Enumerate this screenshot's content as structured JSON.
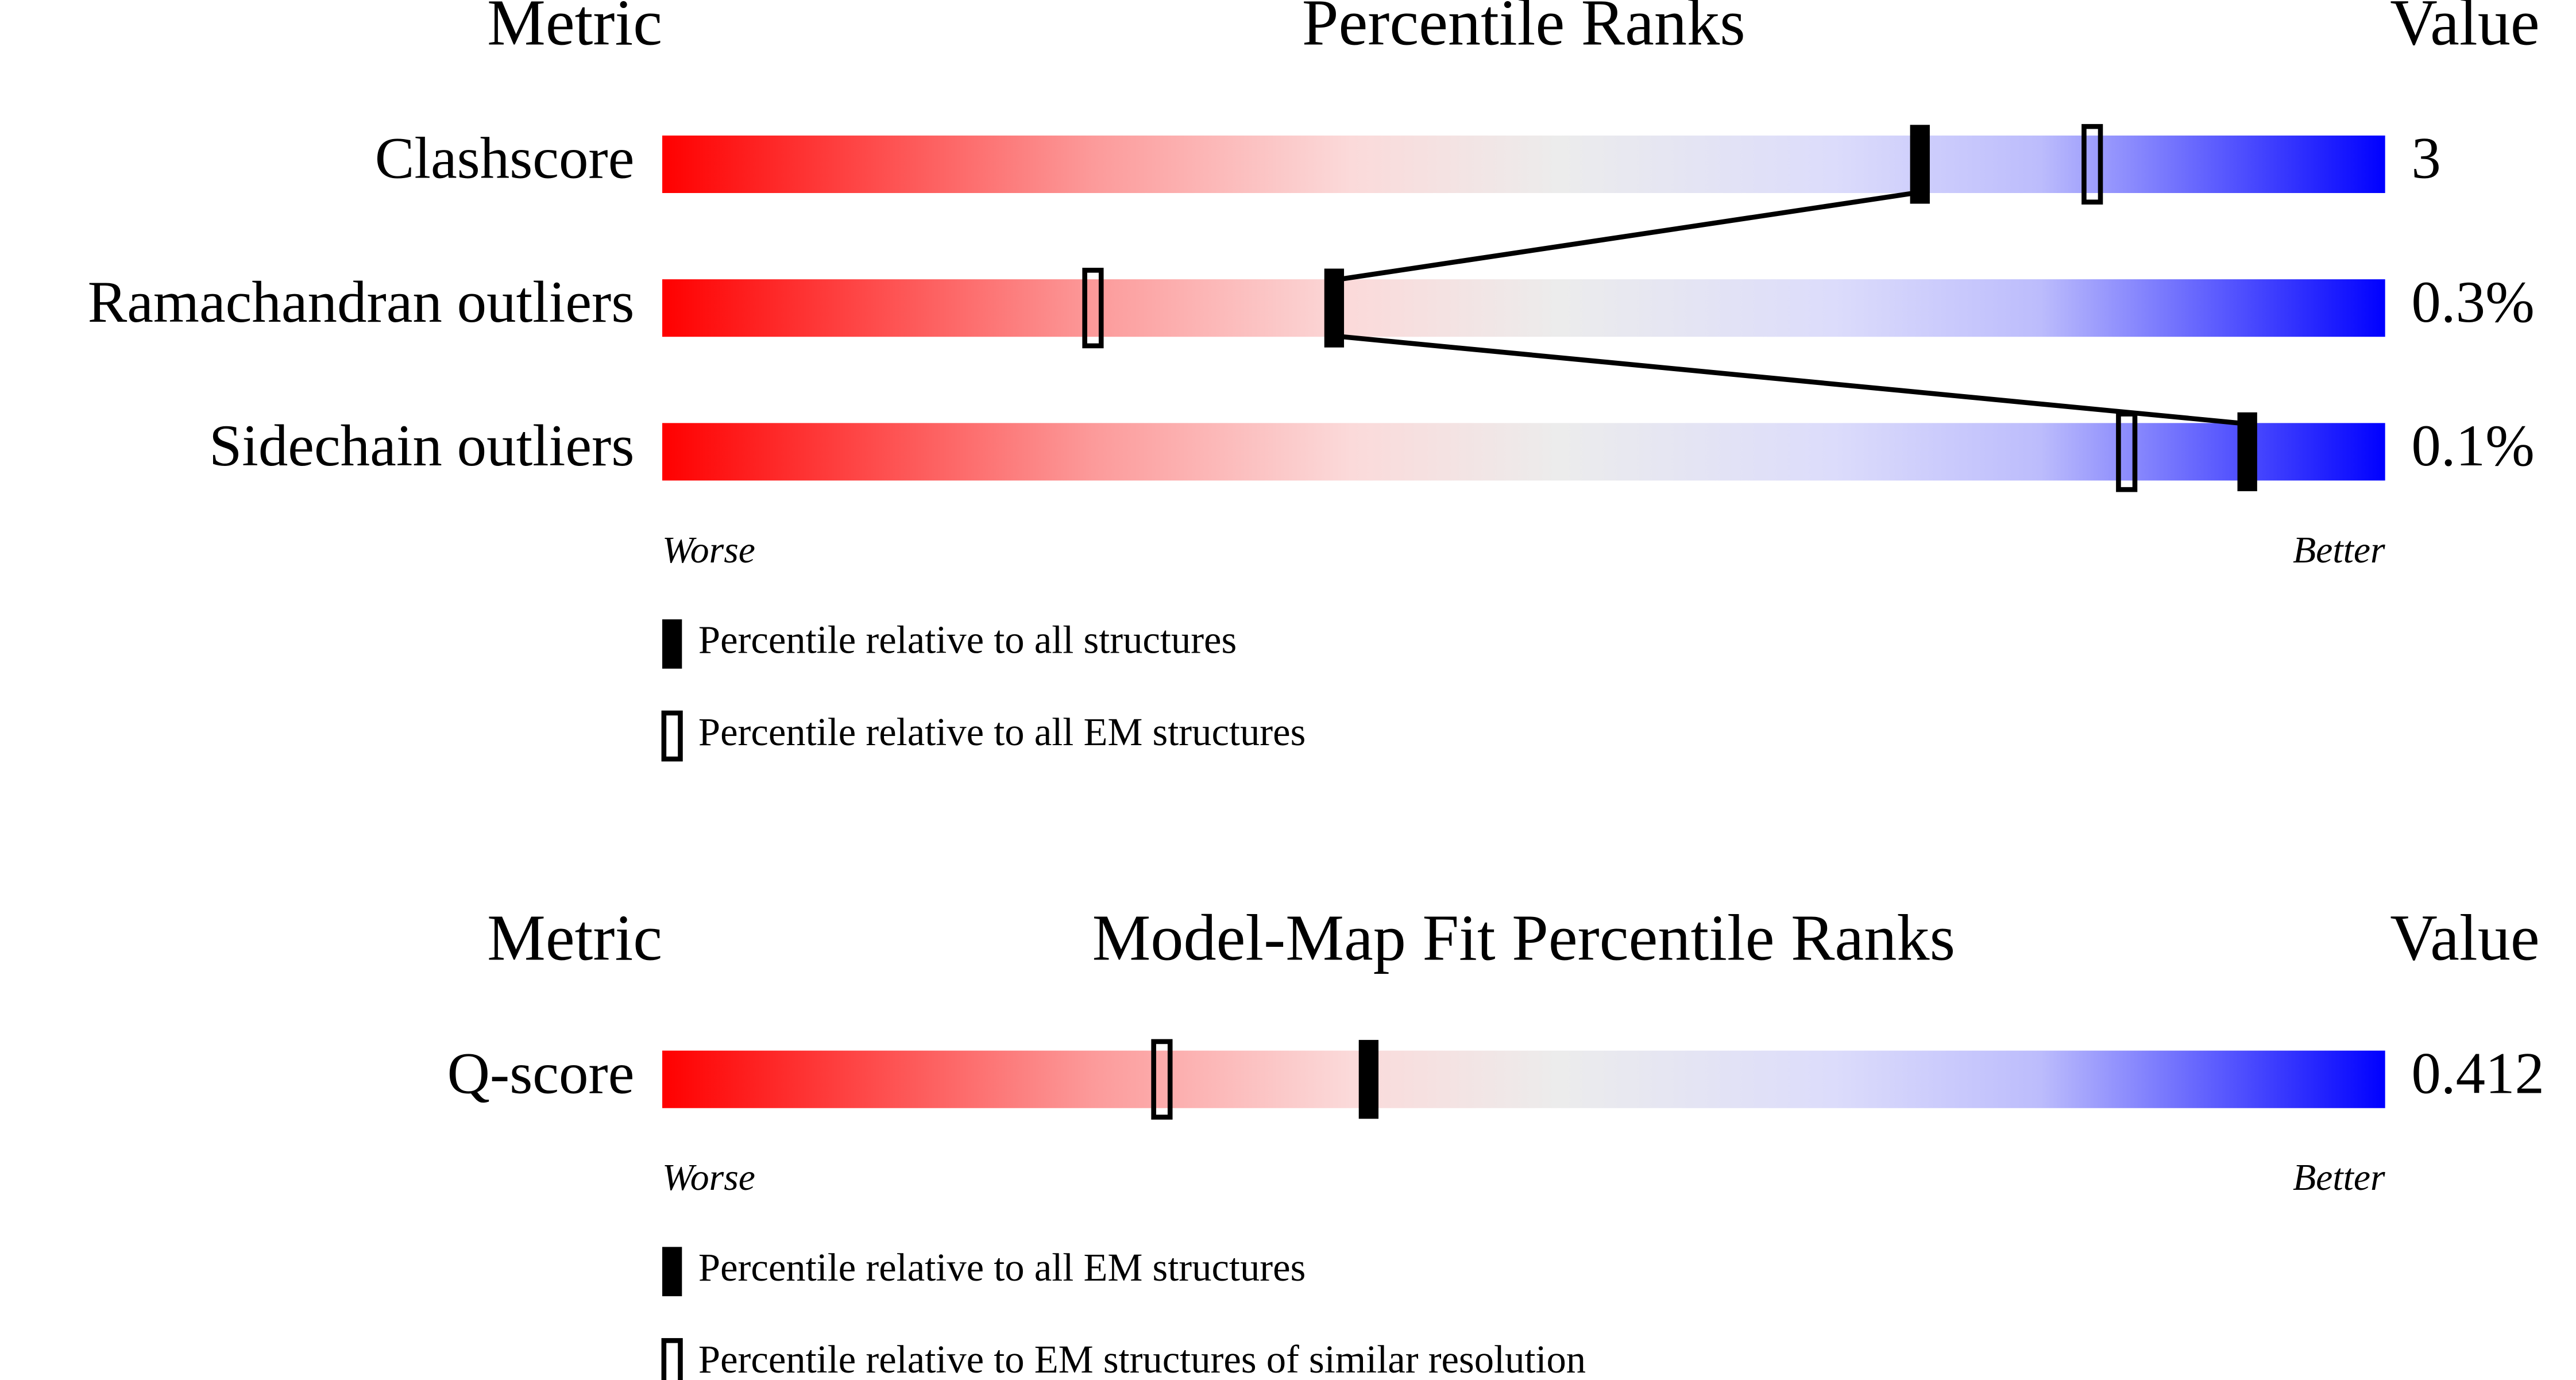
{
  "chart_data": [
    {
      "type": "percentile-slider",
      "header": {
        "metric": "Metric",
        "title": "Percentile Ranks",
        "value": "Value"
      },
      "xlim": [
        0,
        100
      ],
      "worse": "Worse",
      "better": "Better",
      "metrics": [
        {
          "name": "Clashscore",
          "value_label": "3",
          "filled": 73,
          "open": 83
        },
        {
          "name": "Ramachandran outliers",
          "value_label": "0.3%",
          "filled": 39,
          "open": 25
        },
        {
          "name": "Sidechain outliers",
          "value_label": "0.1%",
          "filled": 92,
          "open": 85
        }
      ],
      "connect": true,
      "legend": {
        "filled": "Percentile relative to all structures",
        "open": "Percentile relative to all EM structures"
      }
    },
    {
      "type": "percentile-slider",
      "header": {
        "metric": "Metric",
        "title": "Model-Map Fit Percentile Ranks",
        "value": "Value"
      },
      "xlim": [
        0,
        100
      ],
      "worse": "Worse",
      "better": "Better",
      "metrics": [
        {
          "name": "Q-score",
          "value_label": "0.412",
          "filled": 41,
          "open": 29
        }
      ],
      "connect": false,
      "legend": {
        "filled": "Percentile relative to all EM structures",
        "open": "Percentile relative to EM structures of similar resolution"
      }
    }
  ]
}
